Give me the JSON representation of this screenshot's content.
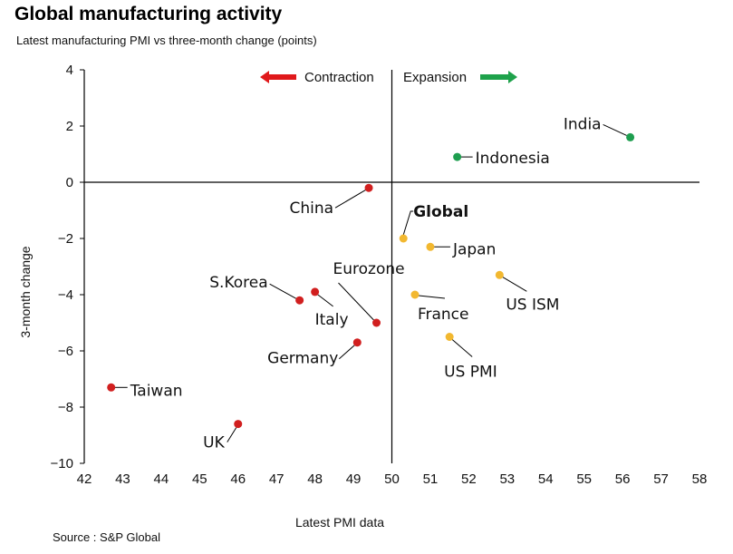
{
  "title": "Global manufacturing activity",
  "subtitle": "Latest manufacturing PMI vs three-month change (points)",
  "source": "Source : S&P Global",
  "chart_data": {
    "type": "scatter",
    "title": "Global manufacturing activity",
    "subtitle": "Latest manufacturing PMI vs three-month change (points)",
    "xlabel": "Latest PMI data",
    "ylabel": "3-month change",
    "xlim": [
      42,
      58
    ],
    "ylim": [
      -10,
      4
    ],
    "xticks": [
      42,
      43,
      44,
      45,
      46,
      47,
      48,
      49,
      50,
      51,
      52,
      53,
      54,
      55,
      56,
      57,
      58
    ],
    "yticks": [
      4,
      2,
      0,
      -2,
      -4,
      -6,
      -8,
      -10
    ],
    "grid": false,
    "reference_lines": {
      "x": 50,
      "y": 0
    },
    "annotations": {
      "contraction": {
        "label": "Contraction",
        "color": "#e0191b"
      },
      "expansion": {
        "label": "Expansion",
        "color": "#1ea24b"
      }
    },
    "colors": {
      "expansion": "#1e9e4f",
      "slowing": "#f2b830",
      "contraction": "#d11f1f"
    },
    "points": [
      {
        "name": "India",
        "x": 56.2,
        "y": 1.6,
        "group": "expansion"
      },
      {
        "name": "Indonesia",
        "x": 51.7,
        "y": 0.9,
        "group": "expansion"
      },
      {
        "name": "China",
        "x": 49.4,
        "y": -0.2,
        "group": "contraction"
      },
      {
        "name": "Global",
        "x": 50.3,
        "y": -2.0,
        "group": "slowing",
        "bold": true
      },
      {
        "name": "Japan",
        "x": 51.0,
        "y": -2.3,
        "group": "slowing"
      },
      {
        "name": "US ISM",
        "x": 52.8,
        "y": -3.3,
        "group": "slowing"
      },
      {
        "name": "France",
        "x": 50.6,
        "y": -4.0,
        "group": "slowing"
      },
      {
        "name": "US PMI",
        "x": 51.5,
        "y": -5.5,
        "group": "slowing"
      },
      {
        "name": "S.Korea",
        "x": 47.6,
        "y": -4.2,
        "group": "contraction"
      },
      {
        "name": "Italy",
        "x": 48.0,
        "y": -3.9,
        "group": "contraction"
      },
      {
        "name": "Eurozone",
        "x": 49.6,
        "y": -5.0,
        "group": "contraction"
      },
      {
        "name": "Germany",
        "x": 49.1,
        "y": -5.7,
        "group": "contraction"
      },
      {
        "name": "Taiwan",
        "x": 42.7,
        "y": -7.3,
        "group": "contraction"
      },
      {
        "name": "UK",
        "x": 46.0,
        "y": -8.6,
        "group": "contraction"
      }
    ]
  }
}
